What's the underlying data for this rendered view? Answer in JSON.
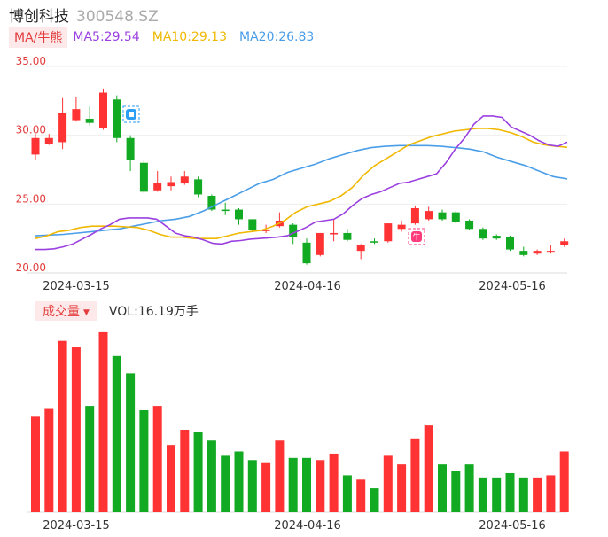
{
  "header": {
    "name": "博创科技",
    "code": "300548.SZ"
  },
  "ma_legend": {
    "tag": "MA/牛熊",
    "ma5": "MA5:29.54",
    "ma10": "MA10:29.13",
    "ma20": "MA20:26.83"
  },
  "volume_legend": {
    "tag": "成交量",
    "value": "VOL:16.19万手"
  },
  "colors": {
    "up": "#ff3333",
    "down": "#11aa22",
    "ma5": "#9b40e0",
    "ma10": "#f0b800",
    "ma20": "#4a9ee8",
    "axis_text": "#e23c3c"
  },
  "icons": {
    "bear_marker": "bear-icon",
    "bull_marker": "bull-icon",
    "bull_marker_text": "牛"
  },
  "chart_data": {
    "type": "candlestick",
    "y_ticks": [
      "35.00",
      "30.00",
      "25.00",
      "20.00"
    ],
    "ylim": [
      20,
      35
    ],
    "x_tick_labels": [
      "2024-03-15",
      "2024-04-16",
      "2024-05-16"
    ],
    "x_tick_indices": [
      3,
      20,
      35
    ],
    "candles": [
      {
        "o": 28.6,
        "c": 29.8,
        "h": 30.1,
        "l": 28.2
      },
      {
        "o": 29.4,
        "c": 29.8,
        "h": 30.1,
        "l": 29.3
      },
      {
        "o": 29.5,
        "c": 31.6,
        "h": 32.7,
        "l": 29.0
      },
      {
        "o": 31.1,
        "c": 31.9,
        "h": 32.8,
        "l": 31.0
      },
      {
        "o": 31.2,
        "c": 30.9,
        "h": 32.1,
        "l": 30.7
      },
      {
        "o": 30.5,
        "c": 33.1,
        "h": 33.4,
        "l": 30.4
      },
      {
        "o": 32.6,
        "c": 29.8,
        "h": 32.9,
        "l": 29.5
      },
      {
        "o": 29.8,
        "c": 28.2,
        "h": 30.0,
        "l": 27.4
      },
      {
        "o": 28.0,
        "c": 25.9,
        "h": 28.2,
        "l": 25.8
      },
      {
        "o": 26.0,
        "c": 26.5,
        "h": 27.4,
        "l": 25.9
      },
      {
        "o": 26.3,
        "c": 26.6,
        "h": 27.0,
        "l": 26.0
      },
      {
        "o": 26.5,
        "c": 27.0,
        "h": 27.4,
        "l": 26.4
      },
      {
        "o": 26.8,
        "c": 25.7,
        "h": 27.0,
        "l": 25.5
      },
      {
        "o": 25.6,
        "c": 24.6,
        "h": 25.7,
        "l": 24.5
      },
      {
        "o": 24.6,
        "c": 24.5,
        "h": 25.1,
        "l": 24.2
      },
      {
        "o": 24.6,
        "c": 23.9,
        "h": 24.7,
        "l": 23.5
      },
      {
        "o": 23.9,
        "c": 23.1,
        "h": 23.9,
        "l": 23.0
      },
      {
        "o": 23.1,
        "c": 23.1,
        "h": 23.5,
        "l": 22.9
      },
      {
        "o": 23.4,
        "c": 23.8,
        "h": 24.4,
        "l": 23.3
      },
      {
        "o": 23.5,
        "c": 22.6,
        "h": 23.6,
        "l": 22.1
      },
      {
        "o": 22.2,
        "c": 20.7,
        "h": 22.5,
        "l": 20.6
      },
      {
        "o": 21.3,
        "c": 22.9,
        "h": 22.9,
        "l": 21.2
      },
      {
        "o": 22.8,
        "c": 22.9,
        "h": 23.9,
        "l": 22.3
      },
      {
        "o": 22.9,
        "c": 22.4,
        "h": 23.2,
        "l": 22.3
      },
      {
        "o": 21.6,
        "c": 22.0,
        "h": 22.1,
        "l": 21.0
      },
      {
        "o": 22.3,
        "c": 22.2,
        "h": 22.5,
        "l": 22.1
      },
      {
        "o": 22.3,
        "c": 23.6,
        "h": 23.6,
        "l": 22.2
      },
      {
        "o": 23.2,
        "c": 23.5,
        "h": 23.8,
        "l": 23.0
      },
      {
        "o": 23.6,
        "c": 24.7,
        "h": 24.9,
        "l": 23.5
      },
      {
        "o": 23.9,
        "c": 24.5,
        "h": 24.8,
        "l": 23.8
      },
      {
        "o": 24.4,
        "c": 23.9,
        "h": 24.6,
        "l": 23.8
      },
      {
        "o": 24.4,
        "c": 23.7,
        "h": 24.5,
        "l": 23.6
      },
      {
        "o": 23.8,
        "c": 23.2,
        "h": 23.9,
        "l": 23.1
      },
      {
        "o": 23.2,
        "c": 22.5,
        "h": 23.3,
        "l": 22.4
      },
      {
        "o": 22.7,
        "c": 22.5,
        "h": 22.8,
        "l": 22.4
      },
      {
        "o": 22.6,
        "c": 21.7,
        "h": 22.7,
        "l": 21.6
      },
      {
        "o": 21.6,
        "c": 21.3,
        "h": 21.9,
        "l": 21.2
      },
      {
        "o": 21.4,
        "c": 21.6,
        "h": 21.7,
        "l": 21.3
      },
      {
        "o": 21.6,
        "c": 21.6,
        "h": 22.0,
        "l": 21.4
      },
      {
        "o": 22.0,
        "c": 22.3,
        "h": 22.5,
        "l": 21.9
      }
    ],
    "ma5": [
      21.7,
      21.7,
      21.75,
      21.9,
      22.1,
      22.45,
      22.8,
      23.2,
      23.5,
      23.9,
      24.0,
      24.0,
      24.0,
      23.9,
      23.4,
      22.9,
      22.7,
      22.6,
      22.4,
      22.15,
      22.1,
      22.3,
      22.35,
      22.45,
      22.5,
      22.55,
      22.6,
      22.7,
      23.0,
      23.3,
      23.7,
      23.8,
      23.9,
      24.3,
      24.9,
      25.4,
      25.7,
      25.9,
      26.2,
      26.5,
      26.6,
      26.8,
      27.0,
      27.2,
      28.0,
      29.0,
      29.8,
      30.8,
      31.4,
      31.4,
      31.3,
      30.6,
      30.3,
      30.0,
      29.6,
      29.3,
      29.2,
      29.5
    ],
    "ma10": [
      22.5,
      22.7,
      23.0,
      23.1,
      23.3,
      23.4,
      23.4,
      23.4,
      23.35,
      23.3,
      23.1,
      22.8,
      22.6,
      22.6,
      22.5,
      22.5,
      22.5,
      22.7,
      22.9,
      23.0,
      23.1,
      23.4,
      23.8,
      24.4,
      24.8,
      25.0,
      25.2,
      25.6,
      26.2,
      27.1,
      27.8,
      28.3,
      28.8,
      29.3,
      29.6,
      29.9,
      30.1,
      30.3,
      30.4,
      30.5,
      30.5,
      30.4,
      30.2,
      29.9,
      29.5,
      29.3,
      29.2,
      29.13
    ],
    "ma20": [
      22.7,
      22.75,
      22.8,
      22.9,
      23.0,
      23.1,
      23.2,
      23.4,
      23.6,
      23.8,
      23.9,
      24.1,
      24.5,
      25.0,
      25.5,
      26.0,
      26.5,
      26.8,
      27.3,
      27.6,
      27.9,
      28.3,
      28.6,
      28.9,
      29.1,
      29.2,
      29.25,
      29.25,
      29.25,
      29.2,
      29.1,
      29.0,
      28.8,
      28.4,
      28.1,
      27.8,
      27.4,
      27.0,
      26.83
    ],
    "volume": [
      44,
      48,
      79,
      76,
      49,
      83,
      72,
      64,
      47,
      49,
      31,
      38,
      37,
      33,
      26,
      28,
      24,
      23,
      33,
      25,
      25,
      24,
      27,
      17,
      15,
      11,
      26,
      22,
      34,
      40,
      22,
      19,
      22,
      16,
      16,
      18,
      16,
      16,
      17,
      28
    ]
  }
}
